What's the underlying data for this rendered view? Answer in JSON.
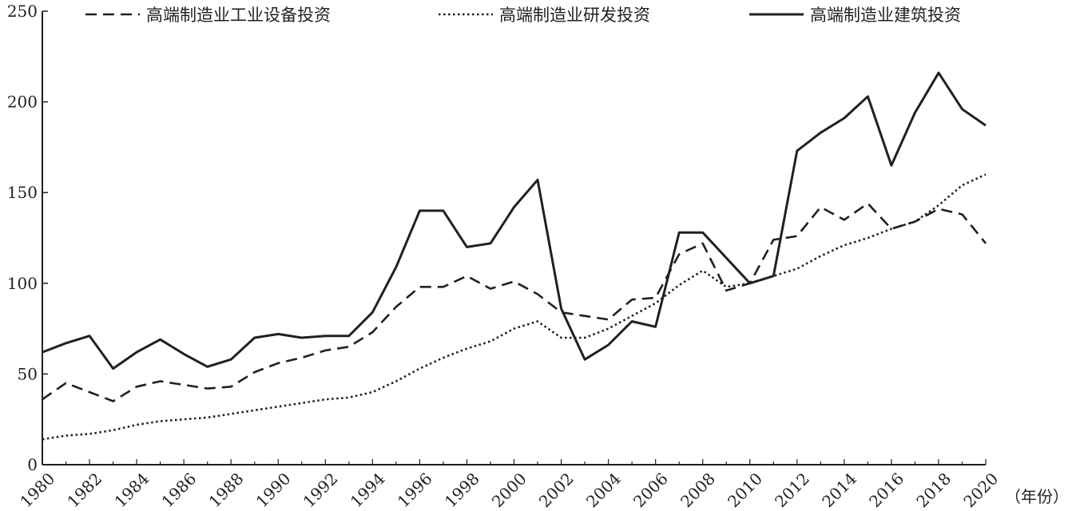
{
  "chart_data": {
    "type": "line",
    "x": [
      1980,
      1981,
      1982,
      1983,
      1984,
      1985,
      1986,
      1987,
      1988,
      1989,
      1990,
      1991,
      1992,
      1993,
      1994,
      1995,
      1996,
      1997,
      1998,
      1999,
      2000,
      2001,
      2002,
      2003,
      2004,
      2005,
      2006,
      2007,
      2008,
      2009,
      2010,
      2011,
      2012,
      2013,
      2014,
      2015,
      2016,
      2017,
      2018,
      2019,
      2020
    ],
    "x_ticks": [
      1980,
      1982,
      1984,
      1986,
      1988,
      1990,
      1992,
      1994,
      1996,
      1998,
      2000,
      2002,
      2004,
      2006,
      2008,
      2010,
      2012,
      2014,
      2016,
      2018,
      2020
    ],
    "xlim": [
      1980,
      2020
    ],
    "y_ticks": [
      0,
      50,
      100,
      150,
      200,
      250
    ],
    "ylim": [
      0,
      250
    ],
    "x_unit": "（年份）",
    "grid": false,
    "legend_position": "top",
    "series": [
      {
        "name": "高端制造业工业设备投资",
        "style": "dashed",
        "color": "#231f20",
        "values": [
          36,
          45,
          40,
          35,
          43,
          46,
          44,
          42,
          43,
          51,
          56,
          59,
          63,
          65,
          73,
          87,
          98,
          98,
          104,
          97,
          101,
          94,
          84,
          82,
          80,
          91,
          92,
          116,
          122,
          96,
          100,
          124,
          126,
          142,
          135,
          144,
          130,
          134,
          141,
          138,
          122
        ]
      },
      {
        "name": "高端制造业研发投资",
        "style": "dotted",
        "color": "#231f20",
        "values": [
          14,
          16,
          17,
          19,
          22,
          24,
          25,
          26,
          28,
          30,
          32,
          34,
          36,
          37,
          40,
          46,
          53,
          59,
          64,
          68,
          75,
          79,
          70,
          70,
          75,
          82,
          89,
          99,
          107,
          98,
          100,
          104,
          108,
          115,
          121,
          125,
          130,
          134,
          143,
          154,
          160
        ]
      },
      {
        "name": "高端制造业建筑投资",
        "style": "solid",
        "color": "#231f20",
        "values": [
          62,
          67,
          71,
          53,
          62,
          69,
          61,
          54,
          58,
          70,
          72,
          70,
          71,
          71,
          84,
          109,
          140,
          140,
          120,
          122,
          142,
          157,
          86,
          58,
          66,
          79,
          76,
          128,
          128,
          114,
          100,
          104,
          173,
          183,
          191,
          203,
          165,
          194,
          216,
          196,
          187
        ]
      }
    ]
  }
}
